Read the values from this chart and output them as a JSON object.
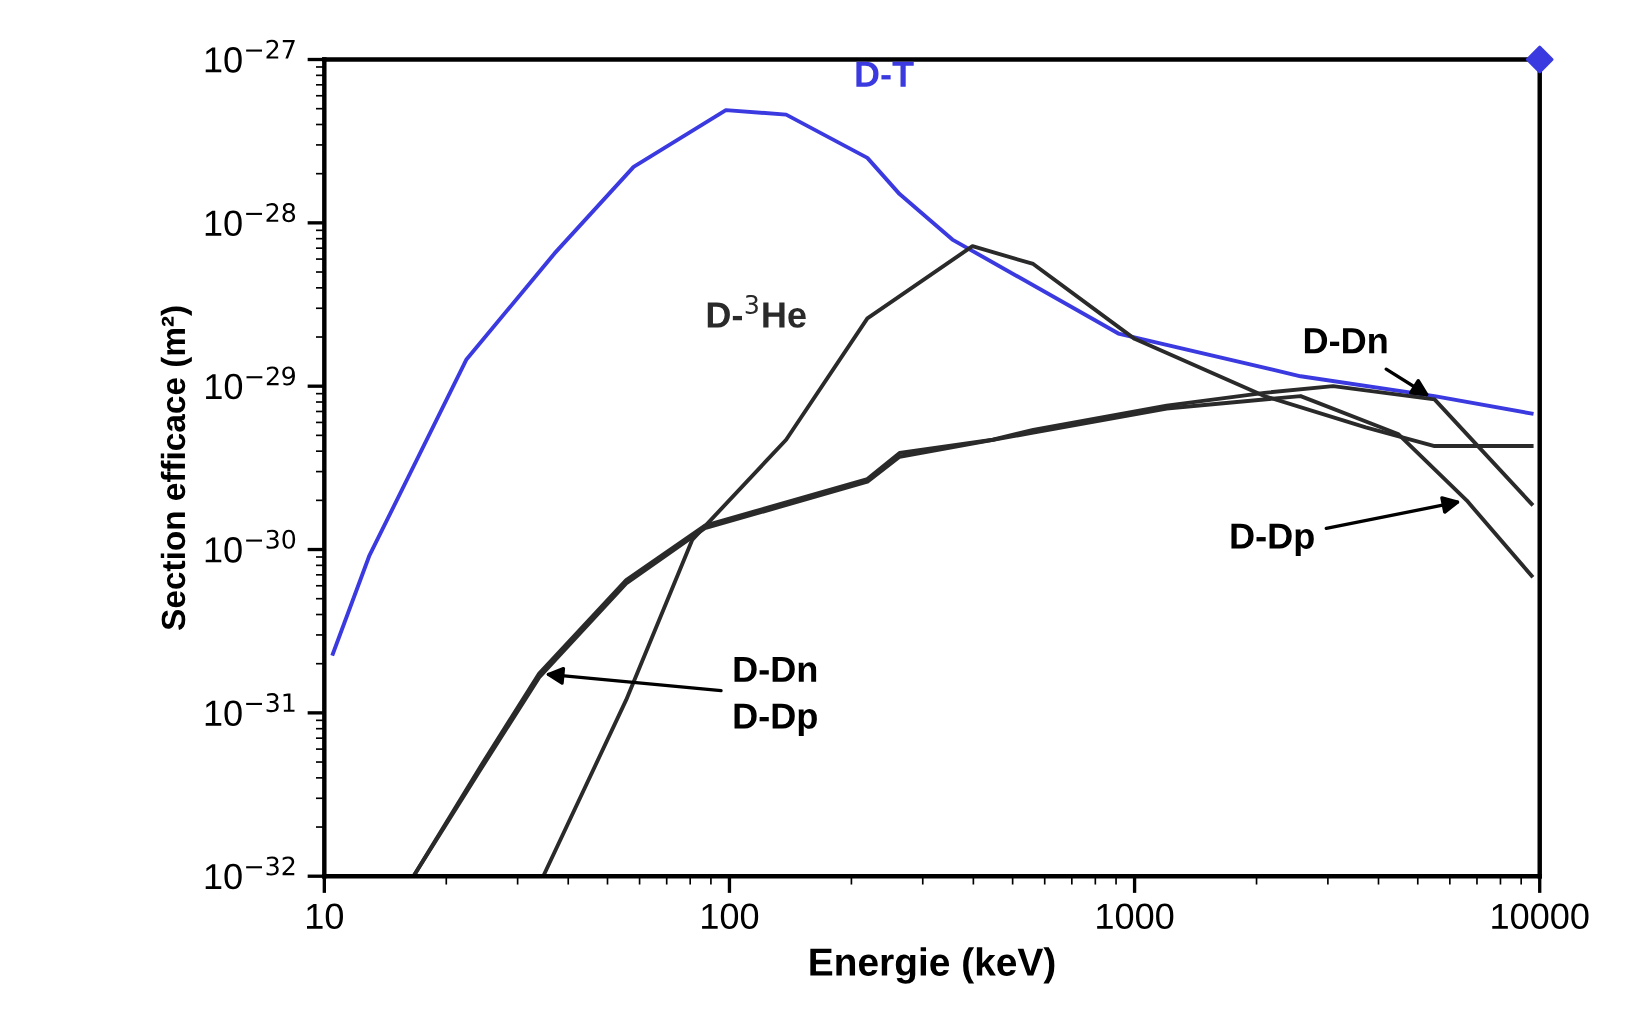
{
  "chart_data": {
    "type": "line",
    "xlabel": "Energie (keV)",
    "ylabel": "Section efficace (m²)",
    "log": "xy",
    "grid": false,
    "legend": false,
    "xlim": [
      10,
      10000
    ],
    "xticks": [
      10,
      100,
      1000,
      10000
    ],
    "ylim": [
      1e-32,
      1e-27
    ],
    "yticks": [
      {
        "value": 1e-32,
        "label": "10$^{−32}$"
      },
      {
        "value": 1e-31,
        "label": "10$^{−31}$"
      },
      {
        "value": 1e-30,
        "label": "10$^{−30}$"
      },
      {
        "value": 1e-29,
        "label": "10$^{−29}$"
      },
      {
        "value": 1e-28,
        "label": "10$^{−28}$"
      },
      {
        "value": 1e-27,
        "label": "10$^{−27}$"
      }
    ],
    "series": [
      {
        "name": "D-T",
        "color": "#3a3ae0",
        "x": [
          10.5,
          12.9,
          22.4,
          37,
          58,
          98,
          138,
          219,
          263,
          355,
          912,
          2570,
          5500,
          9550
        ],
        "values": [
          2.3e-31,
          9.1e-31,
          1.45e-29,
          6.5e-29,
          2.2e-28,
          4.9e-28,
          4.6e-28,
          2.5e-28,
          1.5e-28,
          7.9e-29,
          2.1e-29,
          1.15e-29,
          8.7e-30,
          6.8e-30
        ]
      },
      {
        "name": "D-$^{3}$He",
        "color": "#2a2a2a",
        "x": [
          34.7,
          55.6,
          81,
          138,
          219,
          398,
          562,
          1000,
          2090,
          3720,
          5500,
          9550
        ],
        "values": [
          1e-32,
          1.2e-31,
          1.15e-30,
          4.7e-30,
          2.6e-29,
          7.2e-29,
          5.6e-29,
          1.95e-29,
          8.7e-30,
          5.6e-30,
          4.3e-30,
          4.3e-30
        ]
      },
      {
        "color": "#2a2a2a",
        "x": [
          16.6,
          24.3,
          33.9,
          55.6,
          87,
          219,
          263,
          447,
          562,
          1200,
          2090,
          3090,
          5500,
          9550
        ],
        "values": [
          1e-32,
          4.7e-32,
          1.74e-31,
          6.5e-31,
          1.4e-30,
          2.7e-30,
          3.9e-30,
          4.7e-30,
          5.4e-30,
          7.6e-30,
          9.1e-30,
          1e-29,
          8.3e-30,
          1.9e-30
        ]
      },
      {
        "color": "#2a2a2a",
        "x": [
          16.6,
          24.3,
          33.9,
          55.6,
          87,
          219,
          263,
          562,
          1200,
          2570,
          4470,
          6600,
          9550
        ],
        "values": [
          1e-32,
          4.5e-32,
          1.65e-31,
          6.2e-31,
          1.35e-30,
          2.6e-30,
          3.7e-30,
          5.2e-30,
          7.3e-30,
          8.7e-30,
          5.1e-30,
          2e-30,
          6.9e-31
        ]
      },
      {
        "type": "scatter",
        "marker": "diamond",
        "color": "#3a3ae0",
        "x": [
          10000
        ],
        "values": [
          1e-27
        ]
      }
    ],
    "annotations": [
      {
        "text": "D-Dn",
        "x": 5500,
        "y": 8.3e-30
      },
      {
        "text": "D-Dp",
        "x": 6600,
        "y": 2e-30
      },
      {
        "text": "D-Dn\nD-Dp",
        "x": 33.9,
        "y": 1.74e-31
      }
    ]
  }
}
